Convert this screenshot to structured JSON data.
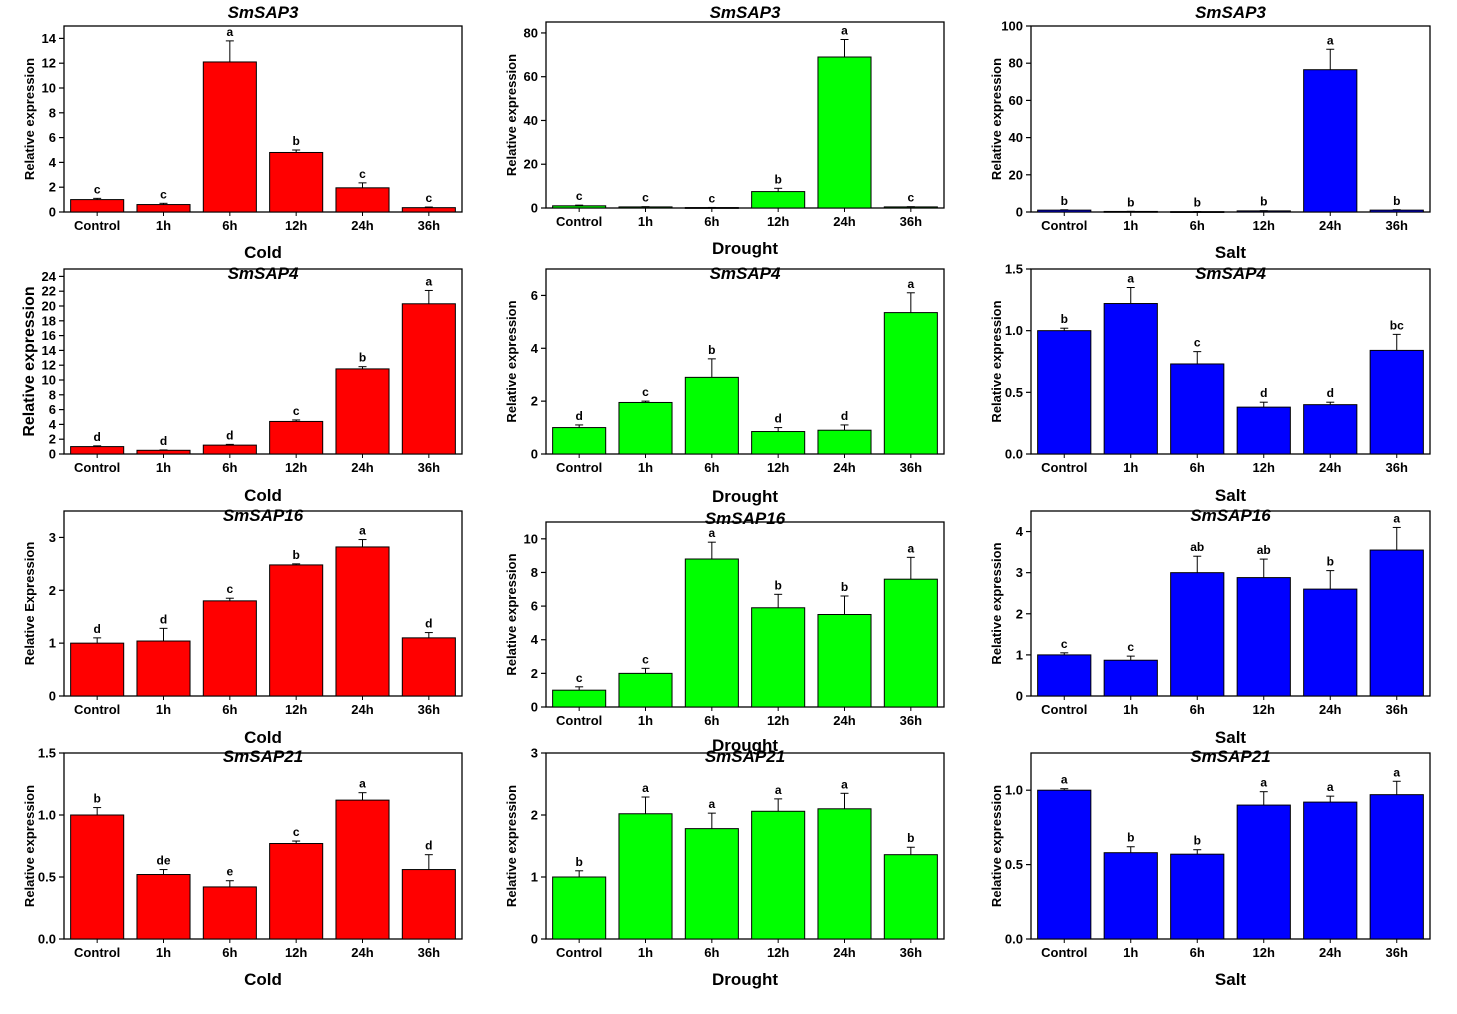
{
  "categories": [
    "Control",
    "1h",
    "6h",
    "12h",
    "24h",
    "36h"
  ],
  "colors": {
    "Cold": "#ff0000",
    "Drought": "#00ff00",
    "Salt": "#0000ff"
  },
  "chart_data": [
    {
      "type": "bar",
      "title": "SmSAP3",
      "xlabel": "Cold",
      "ylabel": "Relative expression",
      "ylim": [
        0,
        15
      ],
      "ticks": [
        0,
        2,
        4,
        6,
        8,
        10,
        12,
        14
      ],
      "tick_decimals": 0,
      "values": [
        1.0,
        0.6,
        12.1,
        4.8,
        1.95,
        0.35
      ],
      "errors": [
        0.1,
        0.1,
        1.7,
        0.2,
        0.4,
        0.05
      ],
      "letters": [
        "c",
        "c",
        "a",
        "b",
        "c",
        "c"
      ]
    },
    {
      "type": "bar",
      "title": "SmSAP3",
      "xlabel": "Drought",
      "ylabel": "Relative expression",
      "ylim": [
        0,
        85
      ],
      "ticks": [
        0,
        20,
        40,
        60,
        80
      ],
      "tick_decimals": 0,
      "values": [
        1.0,
        0.5,
        0.2,
        7.5,
        69,
        0.5
      ],
      "errors": [
        0.3,
        0.1,
        0.05,
        1.5,
        8,
        0.1
      ],
      "letters": [
        "c",
        "c",
        "c",
        "b",
        "a",
        "c"
      ]
    },
    {
      "type": "bar",
      "title": "SmSAP3",
      "xlabel": "Salt",
      "ylabel": "Relative expression",
      "ylim": [
        0,
        100
      ],
      "ticks": [
        0,
        20,
        40,
        60,
        80,
        100
      ],
      "tick_decimals": 0,
      "values": [
        1.0,
        0.3,
        0.2,
        0.6,
        76.5,
        1.0
      ],
      "errors": [
        0.2,
        0.05,
        0.05,
        0.1,
        11,
        0.2
      ],
      "letters": [
        "b",
        "b",
        "b",
        "b",
        "a",
        "b"
      ]
    },
    {
      "type": "bar",
      "title": "SmSAP4",
      "xlabel": "Cold",
      "ylabel": "Relative expression",
      "ylim": [
        0,
        25
      ],
      "ticks": [
        0,
        2,
        4,
        6,
        8,
        10,
        12,
        14,
        16,
        18,
        20,
        22,
        24
      ],
      "tick_decimals": 0,
      "values": [
        1.0,
        0.5,
        1.2,
        4.4,
        11.5,
        20.3
      ],
      "errors": [
        0.1,
        0.05,
        0.1,
        0.2,
        0.3,
        1.8
      ],
      "letters": [
        "d",
        "d",
        "d",
        "c",
        "b",
        "a"
      ]
    },
    {
      "type": "bar",
      "title": "SmSAP4",
      "xlabel": "Drought",
      "ylabel": "Relative expression",
      "ylim": [
        0,
        7
      ],
      "ticks": [
        0,
        2,
        4,
        6
      ],
      "tick_decimals": 0,
      "values": [
        1.0,
        1.95,
        2.9,
        0.85,
        0.9,
        5.35
      ],
      "errors": [
        0.1,
        0.05,
        0.7,
        0.15,
        0.2,
        0.75
      ],
      "letters": [
        "d",
        "c",
        "b",
        "d",
        "d",
        "a"
      ]
    },
    {
      "type": "bar",
      "title": "SmSAP4",
      "xlabel": "Salt",
      "ylabel": "Relative expression",
      "ylim": [
        0,
        1.5
      ],
      "ticks": [
        0.0,
        0.5,
        1.0,
        1.5
      ],
      "tick_decimals": 1,
      "values": [
        1.0,
        1.22,
        0.73,
        0.38,
        0.4,
        0.84
      ],
      "errors": [
        0.02,
        0.13,
        0.1,
        0.04,
        0.02,
        0.13
      ],
      "letters": [
        "b",
        "a",
        "c",
        "d",
        "d",
        "bc"
      ]
    },
    {
      "type": "bar",
      "title": "SmSAP16",
      "xlabel": "Cold",
      "ylabel": "Relative Expression",
      "ylim": [
        0,
        3.5
      ],
      "ticks": [
        0,
        1,
        2,
        3
      ],
      "tick_decimals": 0,
      "values": [
        1.0,
        1.04,
        1.8,
        2.48,
        2.82,
        1.1
      ],
      "errors": [
        0.1,
        0.24,
        0.05,
        0.02,
        0.14,
        0.1
      ],
      "letters": [
        "d",
        "d",
        "c",
        "b",
        "a",
        "d"
      ]
    },
    {
      "type": "bar",
      "title": "SmSAP16",
      "xlabel": "Drought",
      "ylabel": "Relative expression",
      "ylim": [
        0,
        11
      ],
      "ticks": [
        0,
        2,
        4,
        6,
        8,
        10
      ],
      "tick_decimals": 0,
      "values": [
        1.0,
        2.0,
        8.8,
        5.9,
        5.5,
        7.6
      ],
      "errors": [
        0.2,
        0.3,
        1.0,
        0.8,
        1.1,
        1.3
      ],
      "letters": [
        "c",
        "c",
        "a",
        "b",
        "b",
        "a"
      ]
    },
    {
      "type": "bar",
      "title": "SmSAP16",
      "xlabel": "Salt",
      "ylabel": "Relative expression",
      "ylim": [
        0,
        4.5
      ],
      "ticks": [
        0,
        1,
        2,
        3,
        4
      ],
      "tick_decimals": 0,
      "values": [
        1.0,
        0.87,
        3.0,
        2.88,
        2.6,
        3.55
      ],
      "errors": [
        0.05,
        0.1,
        0.4,
        0.45,
        0.45,
        0.55
      ],
      "letters": [
        "c",
        "c",
        "ab",
        "ab",
        "b",
        "a"
      ]
    },
    {
      "type": "bar",
      "title": "SmSAP21",
      "xlabel": "Cold",
      "ylabel": "Relative expression",
      "ylim": [
        0,
        1.5
      ],
      "ticks": [
        0.0,
        0.5,
        1.0,
        1.5
      ],
      "tick_decimals": 1,
      "values": [
        1.0,
        0.52,
        0.42,
        0.77,
        1.12,
        0.56
      ],
      "errors": [
        0.06,
        0.04,
        0.05,
        0.02,
        0.06,
        0.12
      ],
      "letters": [
        "b",
        "de",
        "e",
        "c",
        "a",
        "d"
      ]
    },
    {
      "type": "bar",
      "title": "SmSAP21",
      "xlabel": "Drought",
      "ylabel": "Relative expression",
      "ylim": [
        0,
        3
      ],
      "ticks": [
        0,
        1,
        2,
        3
      ],
      "tick_decimals": 0,
      "values": [
        1.0,
        2.02,
        1.78,
        2.06,
        2.1,
        1.36
      ],
      "errors": [
        0.1,
        0.27,
        0.25,
        0.2,
        0.25,
        0.12
      ],
      "letters": [
        "b",
        "a",
        "a",
        "a",
        "a",
        "b"
      ]
    },
    {
      "type": "bar",
      "title": "SmSAP21",
      "xlabel": "Salt",
      "ylabel": "Relative expression",
      "ylim": [
        0,
        1.25
      ],
      "ticks": [
        0.0,
        0.5,
        1.0
      ],
      "tick_decimals": 1,
      "values": [
        1.0,
        0.58,
        0.57,
        0.9,
        0.92,
        0.97
      ],
      "errors": [
        0.01,
        0.04,
        0.03,
        0.09,
        0.04,
        0.09
      ],
      "letters": [
        "a",
        "b",
        "b",
        "a",
        "a",
        "a"
      ]
    }
  ]
}
